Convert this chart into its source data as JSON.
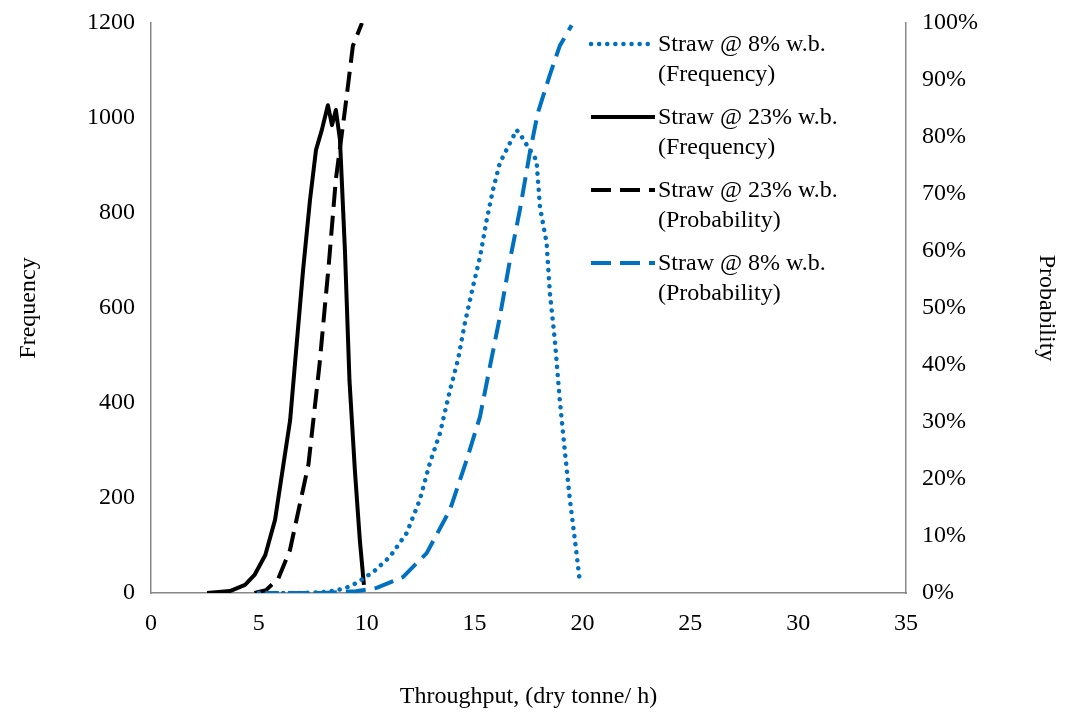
{
  "chart_data": {
    "type": "line",
    "xlabel": "Throughput, (dry tonne/ h)",
    "ylabel": "Frequency",
    "y2label": "Probability",
    "xlim": [
      0,
      35
    ],
    "xticks": [
      0,
      5,
      10,
      15,
      20,
      25,
      30,
      35
    ],
    "ylim": [
      0,
      1200
    ],
    "yticks": [
      0,
      200,
      400,
      600,
      800,
      1000,
      1200
    ],
    "y2lim": [
      0,
      100
    ],
    "y2ticks": [
      {
        "value": 0,
        "label": "0%"
      },
      {
        "value": 10,
        "label": "10%"
      },
      {
        "value": 20,
        "label": "20%"
      },
      {
        "value": 30,
        "label": "30%"
      },
      {
        "value": 40,
        "label": "40%"
      },
      {
        "value": 50,
        "label": "50%"
      },
      {
        "value": 60,
        "label": "60%"
      },
      {
        "value": 70,
        "label": "70%"
      },
      {
        "value": 80,
        "label": "80%"
      },
      {
        "value": 90,
        "label": "90%"
      },
      {
        "value": 100,
        "label": "100%"
      }
    ],
    "grid": false,
    "legend": "top right",
    "marker": "none",
    "series": [
      {
        "name": "Straw @ 8% w.b. (Frequency)",
        "color": "#0070c0",
        "line_style": "dotted",
        "x": [
          5,
          6,
          7,
          8,
          8.5,
          9,
          9.53,
          10.3,
          11.07,
          11.85,
          12.46,
          12.93,
          13.4,
          13.86,
          14.23,
          14.55,
          14.92,
          15.25,
          15.56,
          15.85,
          16.17,
          16.48,
          16.95,
          17.18,
          17.56,
          17.87,
          18.03,
          18.34,
          18.49,
          18.72,
          18.95,
          19.18,
          19.42,
          19.65,
          19.88
        ],
        "values": [
          0,
          0,
          0,
          2,
          5,
          10,
          21,
          44,
          76,
          126,
          196,
          274,
          337,
          427,
          491,
          568,
          644,
          707,
          785,
          848,
          905,
          933,
          975,
          961,
          933,
          911,
          813,
          737,
          632,
          533,
          406,
          301,
          196,
          112,
          24
        ]
      },
      {
        "name": "Straw @ 23% w.b. (Frequency)",
        "color": "#000000",
        "line_style": "solid",
        "x": [
          2.6,
          3.66,
          4.36,
          4.8,
          5.3,
          5.75,
          6.1,
          6.45,
          6.77,
          7.05,
          7.37,
          7.65,
          7.92,
          8.2,
          8.39,
          8.57,
          8.76,
          8.99,
          9.2,
          9.45,
          9.68,
          9.87
        ],
        "values": [
          0,
          4,
          17,
          38,
          80,
          154,
          259,
          364,
          533,
          680,
          827,
          933,
          975,
          1027,
          985,
          1017,
          954,
          722,
          448,
          259,
          112,
          17
        ]
      },
      {
        "name": "Straw @ 23% w.b. (Probability)",
        "color": "#000000",
        "line_style": "dashed",
        "axis": "y2",
        "x": [
          4.8,
          5.33,
          5.9,
          6.44,
          7.3,
          7.81,
          8.25,
          8.57,
          9.0,
          9.36,
          9.78
        ],
        "values": [
          0,
          0.5,
          2.5,
          7.5,
          22.6,
          40,
          58,
          72.6,
          85,
          96,
          100
        ]
      },
      {
        "name": "Straw @ 8% w.b. (Probability)",
        "color": "#0070c0",
        "line_style": "dashed",
        "axis": "y2",
        "x": [
          5,
          8,
          9.5,
          10.46,
          11.68,
          12.78,
          13.86,
          14.63,
          15.25,
          15.71,
          16.17,
          16.64,
          17.1,
          17.56,
          17.93,
          18.49,
          18.95,
          19.5
        ],
        "values": [
          0,
          0,
          0.3,
          0.9,
          2.8,
          7,
          14.6,
          23.3,
          30.9,
          39.7,
          48.4,
          58.4,
          67.2,
          77.2,
          84.2,
          90.9,
          96,
          99.6
        ]
      }
    ]
  }
}
